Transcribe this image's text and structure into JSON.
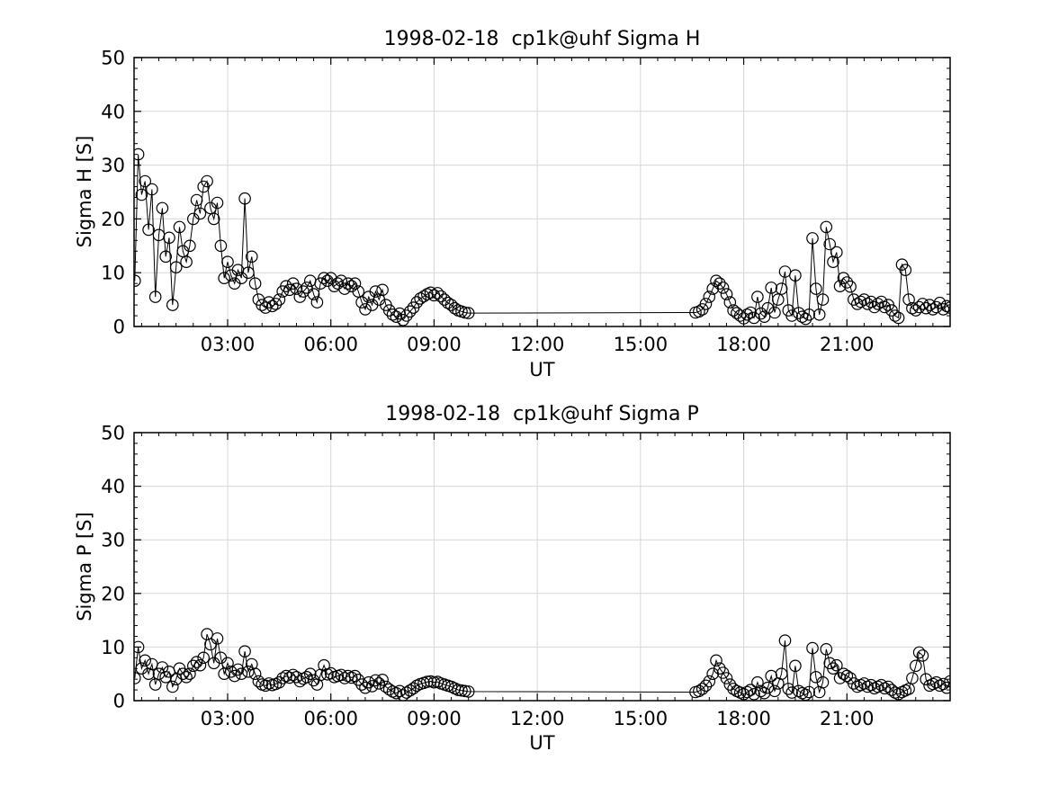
{
  "figure": {
    "background": "#ffffff",
    "axis_color": "#000000",
    "grid_color": "#d7d7d7",
    "text_color": "#000000",
    "marker": "open-circle"
  },
  "chart_data": [
    {
      "type": "line",
      "title": "1998-02-18  cp1k@uhf Sigma H",
      "xlabel": "UT",
      "ylabel": "Sigma H [S]",
      "xlim_hours": [
        0.28,
        24.0
      ],
      "ylim": [
        0,
        50
      ],
      "grid": true,
      "x_ticks": [
        {
          "hour": 3,
          "label": "03:00"
        },
        {
          "hour": 6,
          "label": "06:00"
        },
        {
          "hour": 9,
          "label": "09:00"
        },
        {
          "hour": 12,
          "label": "12:00"
        },
        {
          "hour": 15,
          "label": "15:00"
        },
        {
          "hour": 18,
          "label": "18:00"
        },
        {
          "hour": 21,
          "label": "21:00"
        }
      ],
      "y_ticks": [
        0,
        10,
        20,
        30,
        40,
        50
      ],
      "x_minor_step_hours": 0.5,
      "y_minor_step": 2,
      "series": [
        {
          "name": "Sigma H",
          "segments": [
            {
              "t0": 0.3,
              "dt": 0.1,
              "values": [
                8.5,
                32,
                24.5,
                27,
                18,
                25.5,
                5.5,
                17,
                22,
                13,
                16.5,
                4,
                11,
                18.5,
                14,
                12,
                15,
                20,
                23.5,
                21,
                26,
                27,
                22,
                20,
                23,
                15,
                9,
                12,
                9.5,
                8,
                10.5,
                9,
                23.8,
                10,
                13,
                8,
                5,
                4,
                3.5,
                4.5,
                3.8,
                4.2,
                5,
                6.5,
                7.5,
                6.8,
                8,
                7,
                5.5,
                6.5,
                7.2,
                8.5,
                6,
                4.5,
                8,
                9,
                8.5,
                9,
                7.5,
                8,
                8.5,
                7,
                8,
                7.5,
                8,
                6.5,
                4.5,
                3.2,
                5.5,
                4,
                6.5,
                5,
                6.8,
                4,
                3,
                2.2,
                1.8,
                2.4,
                1.2,
                2,
                2.8,
                3.5,
                4.5,
                5.2,
                5.6,
                6,
                6.3,
                5.8,
                6.2,
                5.6,
                5,
                4.4,
                4,
                3.4,
                3,
                2.8,
                2.6,
                2.5
              ]
            },
            {
              "t0": 16.6,
              "dt": 0.1,
              "values": [
                2.6,
                2.8,
                3.2,
                4.2,
                5.5,
                7,
                8.5,
                8,
                7.2,
                6,
                4.5,
                3,
                2.5,
                2,
                1.5,
                2.2,
                2.6,
                1.6,
                5.5,
                2.4,
                1.8,
                3.4,
                7.2,
                2.6,
                5,
                7,
                10.2,
                3,
                2,
                9.5,
                2.5,
                1.8,
                1.4,
                2.2,
                16.4,
                7,
                2.2,
                5,
                18.5,
                15.3,
                12,
                13.8,
                7.5,
                9,
                8.2,
                7.4,
                5,
                4.2,
                4.6,
                5,
                4.2,
                4.6,
                3.6,
                4.2,
                4.6,
                3.6,
                4,
                3,
                2,
                1.6,
                11.5,
                10.5,
                5,
                3.4,
                3,
                3.6,
                4.2,
                3.4,
                4,
                3.2,
                3.6,
                4.4,
                3.2,
                3.8,
                3.5
              ]
            }
          ]
        }
      ]
    },
    {
      "type": "line",
      "title": "1998-02-18  cp1k@uhf Sigma P",
      "xlabel": "UT",
      "ylabel": "Sigma P [S]",
      "xlim_hours": [
        0.28,
        24.0
      ],
      "ylim": [
        0,
        50
      ],
      "grid": true,
      "x_ticks": [
        {
          "hour": 3,
          "label": "03:00"
        },
        {
          "hour": 6,
          "label": "06:00"
        },
        {
          "hour": 9,
          "label": "09:00"
        },
        {
          "hour": 12,
          "label": "12:00"
        },
        {
          "hour": 15,
          "label": "15:00"
        },
        {
          "hour": 18,
          "label": "18:00"
        },
        {
          "hour": 21,
          "label": "21:00"
        }
      ],
      "y_ticks": [
        0,
        10,
        20,
        30,
        40,
        50
      ],
      "x_minor_step_hours": 0.5,
      "y_minor_step": 2,
      "series": [
        {
          "name": "Sigma P",
          "segments": [
            {
              "t0": 0.3,
              "dt": 0.1,
              "values": [
                4.2,
                10,
                6,
                7.5,
                5,
                6.8,
                3,
                5,
                6.2,
                4.4,
                5.4,
                2.6,
                4,
                6,
                5,
                4.4,
                5,
                6.5,
                7.2,
                6.6,
                8,
                12.4,
                10.5,
                7,
                11.6,
                8,
                5,
                7,
                5.4,
                4.6,
                5.8,
                5,
                9.2,
                5.4,
                6.8,
                5,
                3.6,
                3,
                2.8,
                3.2,
                2.9,
                3.1,
                3.4,
                4.2,
                4.6,
                4.3,
                4.8,
                4.4,
                3.6,
                4.1,
                4.4,
                5,
                3.8,
                3,
                4.8,
                6.6,
                4.9,
                5.1,
                4.4,
                4.6,
                4.8,
                4.2,
                4.6,
                4.3,
                4.6,
                3.9,
                3,
                2.4,
                3.4,
                2.7,
                3.8,
                3.2,
                3.9,
                2.6,
                2.1,
                1.7,
                1.4,
                1.8,
                1,
                1.5,
                1.9,
                2.3,
                2.8,
                3.1,
                3.3,
                3.5,
                3.6,
                3.4,
                3.5,
                3.2,
                3,
                2.8,
                2.6,
                2.3,
                2,
                1.9,
                1.8,
                1.7
              ]
            },
            {
              "t0": 16.6,
              "dt": 0.1,
              "values": [
                1.6,
                1.8,
                2.2,
                2.8,
                3.6,
                5,
                7.5,
                6,
                5.2,
                4.2,
                3,
                2.2,
                1.8,
                1.5,
                1.2,
                1.6,
                2,
                1.2,
                3.4,
                1.8,
                1.4,
                2.4,
                4.6,
                1.8,
                3.2,
                5,
                11.2,
                2.2,
                1.5,
                6.5,
                1.8,
                1.4,
                1.1,
                1.6,
                9.8,
                4.4,
                1.6,
                3.4,
                9.6,
                7,
                6,
                6.6,
                4.2,
                5,
                4.6,
                4.2,
                3.2,
                2.6,
                2.9,
                3.2,
                2.6,
                2.9,
                2.3,
                2.6,
                2.9,
                2.3,
                2.6,
                2,
                1.5,
                1.2,
                1.6,
                1.9,
                2.2,
                4.2,
                6.5,
                9,
                8.4,
                4,
                2.8,
                3.1,
                3.4,
                2.8,
                3.1,
                2.4,
                3.6
              ]
            }
          ]
        }
      ]
    }
  ]
}
